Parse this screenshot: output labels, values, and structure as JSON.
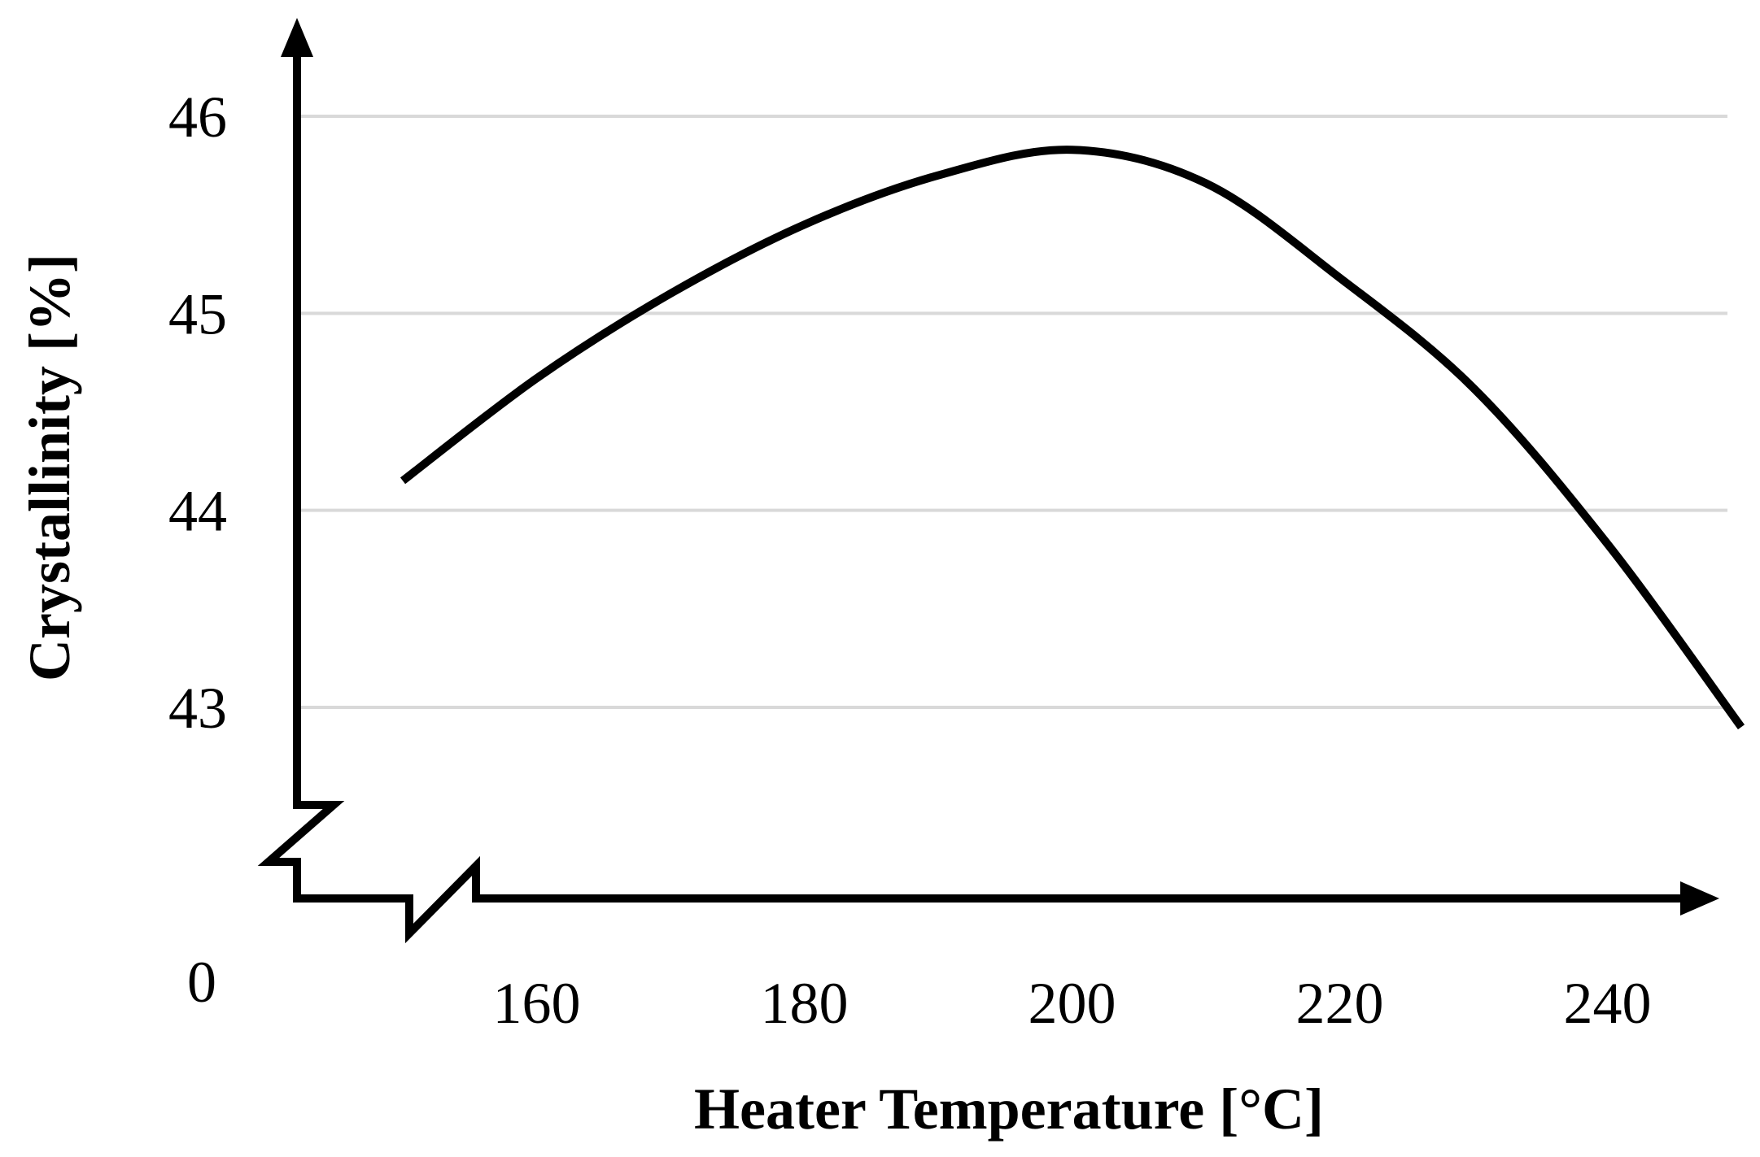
{
  "chart_data": {
    "type": "line",
    "title": "",
    "xlabel": "Heater Temperature [°C]",
    "ylabel": "Crystallinity [%]",
    "x_ticks": [
      "160",
      "180",
      "200",
      "220",
      "240"
    ],
    "y_ticks": [
      "43",
      "44",
      "45",
      "46"
    ],
    "origin_label": "0",
    "xlim": [
      150,
      250
    ],
    "ylim": [
      43,
      46
    ],
    "x_axis_break": true,
    "y_axis_break": true,
    "grid": "horizontal",
    "series": [
      {
        "color": "#000000",
        "x": [
          150,
          160,
          170,
          180,
          190,
          200,
          210,
          220,
          230,
          240,
          250
        ],
        "y": [
          44.15,
          44.67,
          45.1,
          45.45,
          45.7,
          45.83,
          45.66,
          45.18,
          44.62,
          43.83,
          42.9
        ]
      }
    ]
  }
}
